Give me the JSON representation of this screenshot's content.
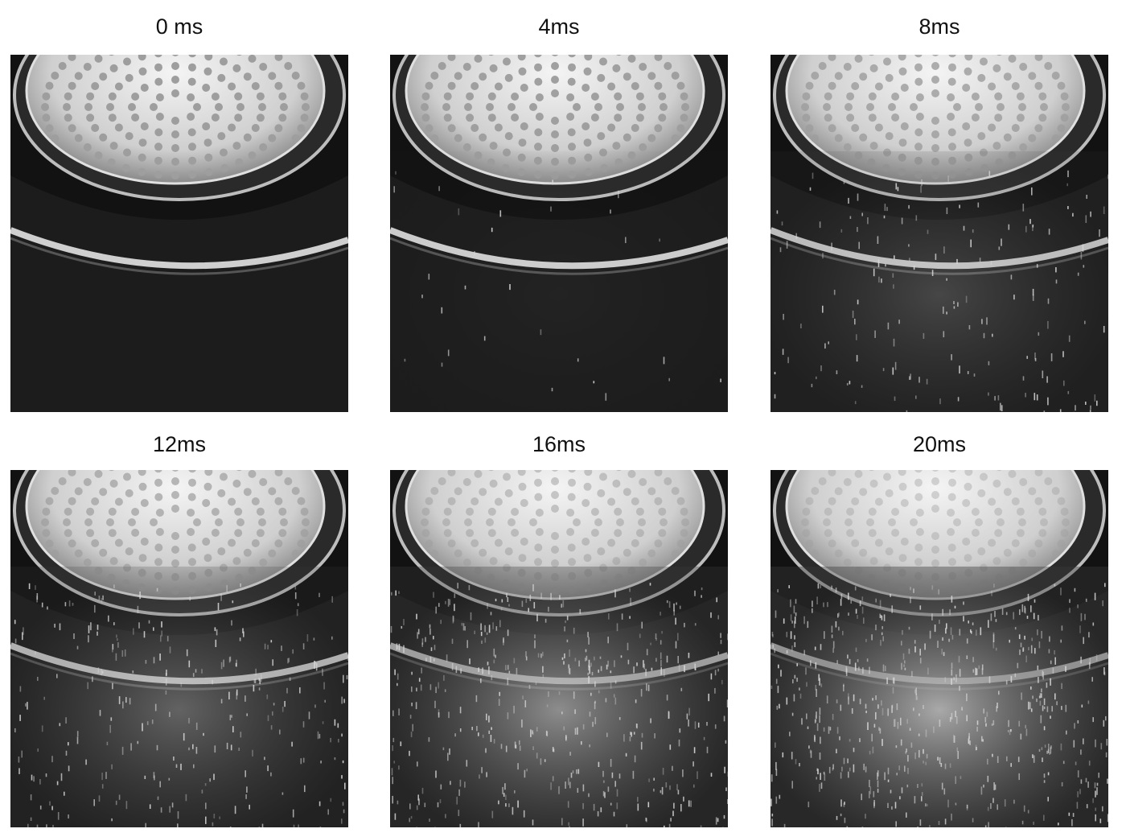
{
  "figure": {
    "frames": [
      {
        "label": "0 ms",
        "spray": 0.0
      },
      {
        "label": "4ms",
        "spray": 0.05
      },
      {
        "label": "8ms",
        "spray": 0.3
      },
      {
        "label": "12ms",
        "spray": 0.5
      },
      {
        "label": "16ms",
        "spray": 0.8
      },
      {
        "label": "20ms",
        "spray": 1.0
      }
    ]
  }
}
